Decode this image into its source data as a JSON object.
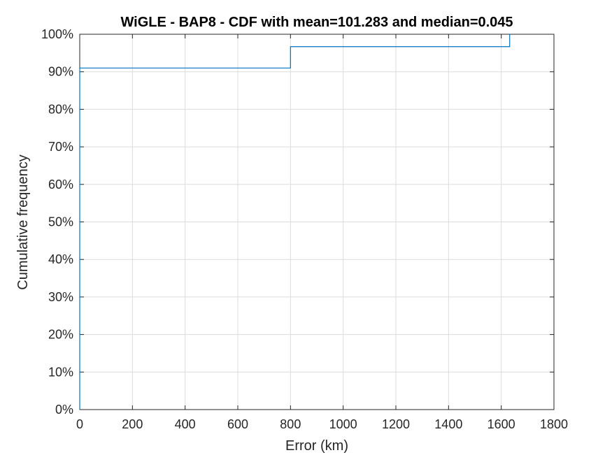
{
  "chart_data": {
    "type": "line",
    "title": "WiGLE - BAP8 - CDF with mean=101.283 and median=0.045",
    "xlabel": "Error (km)",
    "ylabel": "Cumulative frequency",
    "xlim": [
      0,
      1800
    ],
    "ylim": [
      0,
      100
    ],
    "x_ticks": [
      "0",
      "200",
      "400",
      "600",
      "800",
      "1000",
      "1200",
      "1400",
      "1600",
      "1800"
    ],
    "y_ticks": [
      "0%",
      "10%",
      "20%",
      "30%",
      "40%",
      "50%",
      "60%",
      "70%",
      "80%",
      "90%",
      "100%"
    ],
    "grid": true,
    "series": [
      {
        "color": "#0072BD",
        "step": true,
        "x": [
          0,
          0,
          800,
          800,
          1632,
          1632
        ],
        "y": [
          0,
          91,
          91,
          96.7,
          96.7,
          100
        ]
      }
    ]
  }
}
